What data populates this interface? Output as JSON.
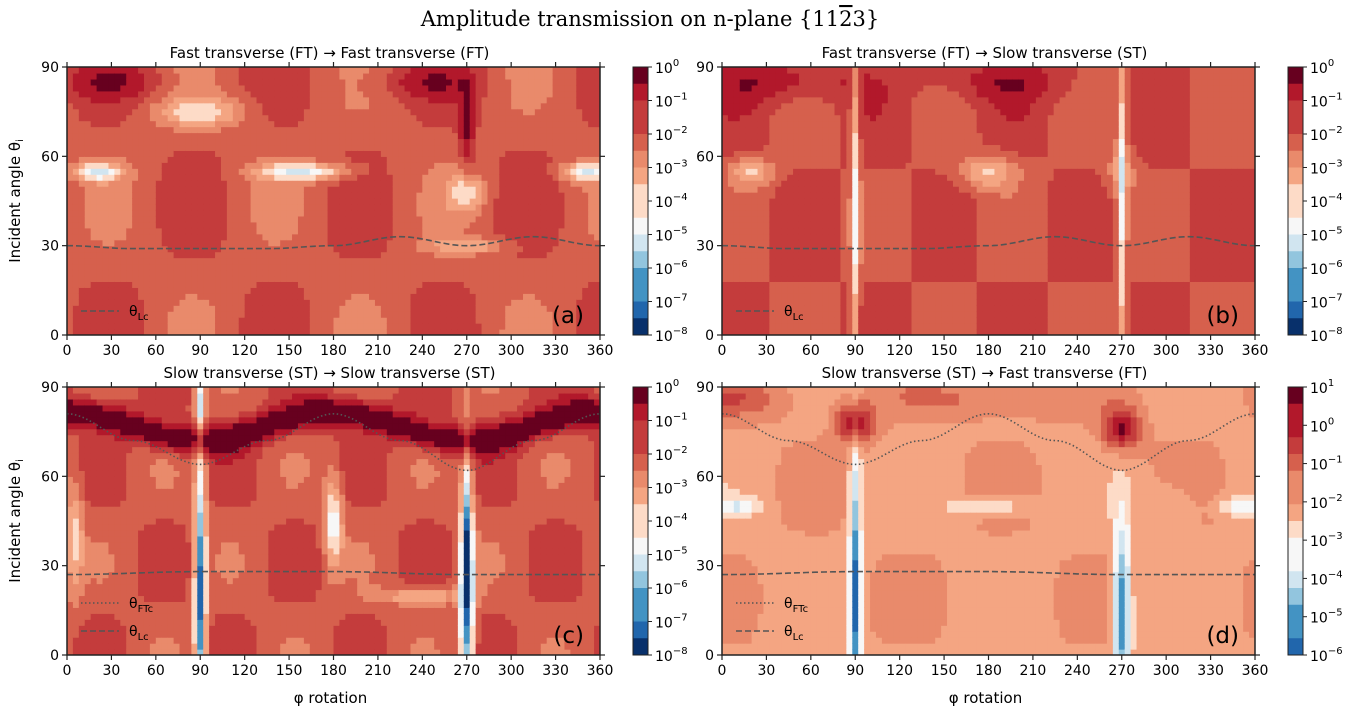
{
  "figure": {
    "title": "Amplitude transmission on n-plane {11¯23}",
    "title_parts": {
      "prefix": "Amplitude transmission on n-plane {11",
      "overbar": "2",
      "suffix": "3}"
    },
    "ylabel": "Incident angle θ",
    "ylabel_sub": "i",
    "xlabel": "φ rotation"
  },
  "palette": [
    "#08306b",
    "#2166ac",
    "#4393c3",
    "#92c5de",
    "#d1e5f0",
    "#f7f7f7",
    "#fddbc7",
    "#f4a582",
    "#e98a6b",
    "#d6604d",
    "#c43c3c",
    "#b2182b",
    "#67001f"
  ],
  "chart_data": [
    {
      "id": "a",
      "type": "heatmap",
      "title": "Fast transverse (FT) → Fast transverse (FT)",
      "panel_label": "(a)",
      "x": {
        "label": "",
        "range": [
          0,
          360
        ],
        "ticks": [
          0,
          30,
          60,
          90,
          120,
          150,
          180,
          210,
          240,
          270,
          300,
          330,
          360
        ]
      },
      "y": {
        "label": "Incident angle θi",
        "range": [
          0,
          90
        ],
        "ticks": [
          0,
          30,
          60,
          90
        ]
      },
      "colorbar": {
        "scale": "log",
        "levels": [
          "10^0",
          "10^-1",
          "10^-2",
          "10^-3",
          "10^-4",
          "10^-5",
          "10^-6",
          "10^-7",
          "10^-8"
        ]
      },
      "legend": [
        {
          "style": "dashed",
          "label": "θ",
          "sub": "Lc"
        }
      ],
      "critical_curves": {
        "theta_Lc": {
          "phi": [
            0,
            45,
            90,
            135,
            180,
            225,
            270,
            315,
            360
          ],
          "theta": [
            30,
            29,
            29,
            29,
            30,
            33,
            30,
            33,
            30
          ]
        }
      }
    },
    {
      "id": "b",
      "type": "heatmap",
      "title": "Fast transverse (FT) → Slow transverse (ST)",
      "panel_label": "(b)",
      "x": {
        "label": "",
        "range": [
          0,
          360
        ],
        "ticks": [
          0,
          30,
          60,
          90,
          120,
          150,
          180,
          210,
          240,
          270,
          300,
          330,
          360
        ]
      },
      "y": {
        "label": "",
        "range": [
          0,
          90
        ],
        "ticks": [
          0,
          30,
          60,
          90
        ]
      },
      "colorbar": {
        "scale": "log",
        "levels": [
          "10^0",
          "10^-1",
          "10^-2",
          "10^-3",
          "10^-4",
          "10^-5",
          "10^-6",
          "10^-7",
          "10^-8"
        ]
      },
      "legend": [
        {
          "style": "dashed",
          "label": "θ",
          "sub": "Lc"
        }
      ],
      "critical_curves": {
        "theta_Lc": {
          "phi": [
            0,
            45,
            90,
            135,
            180,
            225,
            270,
            315,
            360
          ],
          "theta": [
            30,
            29,
            29,
            29,
            30,
            33,
            30,
            33,
            30
          ]
        }
      }
    },
    {
      "id": "c",
      "type": "heatmap",
      "title": "Slow transverse (ST) → Slow transverse (ST)",
      "panel_label": "(c)",
      "x": {
        "label": "φ rotation",
        "range": [
          0,
          360
        ],
        "ticks": [
          0,
          30,
          60,
          90,
          120,
          150,
          180,
          210,
          240,
          270,
          300,
          330,
          360
        ]
      },
      "y": {
        "label": "Incident angle θi",
        "range": [
          0,
          90
        ],
        "ticks": [
          0,
          30,
          60,
          90
        ]
      },
      "colorbar": {
        "scale": "log",
        "levels": [
          "10^0",
          "10^-1",
          "10^-2",
          "10^-3",
          "10^-4",
          "10^-5",
          "10^-6",
          "10^-7",
          "10^-8"
        ]
      },
      "legend": [
        {
          "style": "dotted",
          "label": "θ",
          "sub": "FTc"
        },
        {
          "style": "dashed",
          "label": "θ",
          "sub": "Lc"
        }
      ],
      "critical_curves": {
        "theta_FTc": {
          "phi": [
            0,
            45,
            90,
            135,
            180,
            225,
            270,
            315,
            360
          ],
          "theta": [
            81,
            72,
            64,
            72,
            81,
            72,
            62,
            72,
            81
          ]
        },
        "theta_Lc": {
          "phi": [
            0,
            90,
            180,
            270,
            360
          ],
          "theta": [
            27,
            28,
            28,
            27,
            27
          ]
        }
      }
    },
    {
      "id": "d",
      "type": "heatmap",
      "title": "Slow transverse (ST) → Fast transverse (FT)",
      "panel_label": "(d)",
      "x": {
        "label": "φ rotation",
        "range": [
          0,
          360
        ],
        "ticks": [
          0,
          30,
          60,
          90,
          120,
          150,
          180,
          210,
          240,
          270,
          300,
          330,
          360
        ]
      },
      "y": {
        "label": "",
        "range": [
          0,
          90
        ],
        "ticks": [
          0,
          30,
          60,
          90
        ]
      },
      "colorbar": {
        "scale": "log",
        "levels": [
          "10^1",
          "10^0",
          "10^-1",
          "10^-2",
          "10^-3",
          "10^-4",
          "10^-5",
          "10^-6"
        ]
      },
      "legend": [
        {
          "style": "dotted",
          "label": "θ",
          "sub": "FTc"
        },
        {
          "style": "dashed",
          "label": "θ",
          "sub": "Lc"
        }
      ],
      "critical_curves": {
        "theta_FTc": {
          "phi": [
            0,
            45,
            90,
            135,
            180,
            225,
            270,
            315,
            360
          ],
          "theta": [
            81,
            72,
            64,
            72,
            81,
            72,
            62,
            72,
            81
          ]
        },
        "theta_Lc": {
          "phi": [
            0,
            90,
            180,
            270,
            360
          ],
          "theta": [
            27,
            28,
            28,
            27,
            27
          ]
        }
      }
    }
  ]
}
